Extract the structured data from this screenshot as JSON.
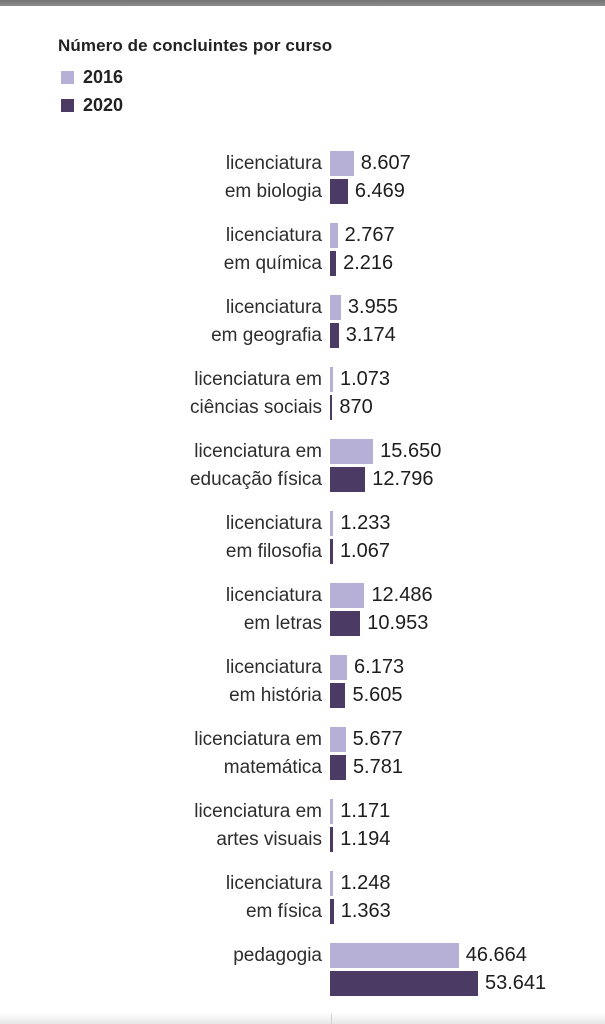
{
  "page": {
    "top_bar_color": "#7b7b7b",
    "background_color": "#ffffff",
    "footer_strip_color": "#e6e6e6"
  },
  "chart_data": {
    "type": "bar",
    "orientation": "horizontal",
    "title": "Número de concluintes por curso",
    "xlabel": "",
    "ylabel": "",
    "grid": false,
    "legend_position": "top-left",
    "xlim": [
      0,
      53641
    ],
    "categories": [
      "licenciatura em biologia",
      "licenciatura em química",
      "licenciatura em geografia",
      "licenciatura em ciências sociais",
      "licenciatura em educação física",
      "licenciatura em filosofia",
      "licenciatura em letras",
      "licenciatura em história",
      "licenciatura em matemática",
      "licenciatura em artes visuais",
      "licenciatura em física",
      "pedagogia"
    ],
    "category_lines": [
      [
        "licenciatura",
        "em biologia"
      ],
      [
        "licenciatura",
        "em química"
      ],
      [
        "licenciatura",
        "em geografia"
      ],
      [
        "licenciatura em",
        "ciências sociais"
      ],
      [
        "licenciatura em",
        "educação física"
      ],
      [
        "licenciatura",
        "em filosofia"
      ],
      [
        "licenciatura",
        "em letras"
      ],
      [
        "licenciatura",
        "em história"
      ],
      [
        "licenciatura em",
        "matemática"
      ],
      [
        "licenciatura em",
        "artes visuais"
      ],
      [
        "licenciatura",
        "em física"
      ],
      [
        "pedagogia",
        ""
      ]
    ],
    "series": [
      {
        "name": "2016",
        "color": "#b7b0d6",
        "values": [
          8607,
          2767,
          3955,
          1073,
          15650,
          1233,
          12486,
          6173,
          5677,
          1171,
          1248,
          46664
        ],
        "value_labels": [
          "8.607",
          "2.767",
          "3.955",
          "1.073",
          "15.650",
          "1.233",
          "12.486",
          "6.173",
          "5.677",
          "1.171",
          "1.248",
          "46.664"
        ]
      },
      {
        "name": "2020",
        "color": "#4a3a64",
        "values": [
          6469,
          2216,
          3174,
          870,
          12796,
          1067,
          10953,
          5605,
          5781,
          1194,
          1363,
          53641
        ],
        "value_labels": [
          "6.469",
          "2.216",
          "3.174",
          "870",
          "12.796",
          "1.067",
          "10.953",
          "5.605",
          "5.781",
          "1.194",
          "1.363",
          "53.641"
        ]
      }
    ]
  }
}
